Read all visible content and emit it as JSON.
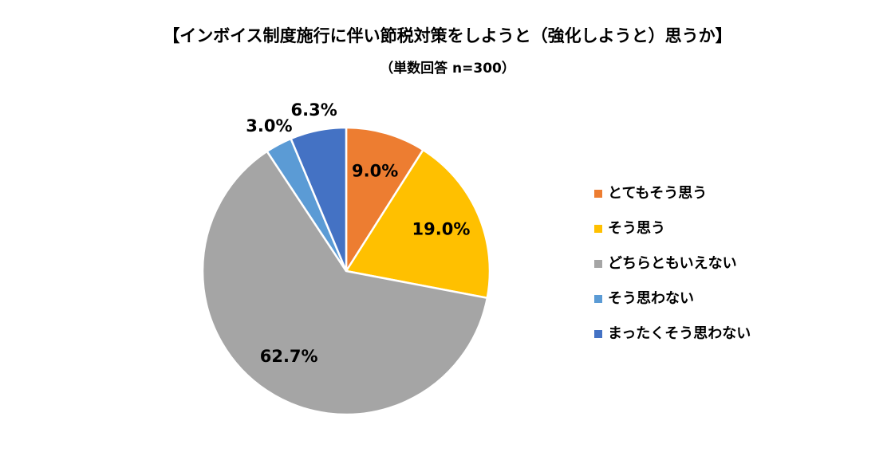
{
  "chart_data": {
    "type": "pie",
    "title": "【インボイス制度施行に伴い節税対策をしようと（強化しようと）思うか】",
    "subtitle": "（単数回答 n=300）",
    "categories": [
      "とてもそう思う",
      "そう思う",
      "どちらともいえない",
      "そう思わない",
      "まったくそう思わない"
    ],
    "values": [
      9.0,
      19.0,
      62.7,
      3.0,
      6.3
    ],
    "value_labels": [
      "9.0%",
      "19.0%",
      "62.7%",
      "3.0%",
      "6.3%"
    ],
    "colors": [
      "#ed7d31",
      "#ffc000",
      "#a5a5a5",
      "#5b9bd5",
      "#4472c4"
    ],
    "legend": "right"
  }
}
